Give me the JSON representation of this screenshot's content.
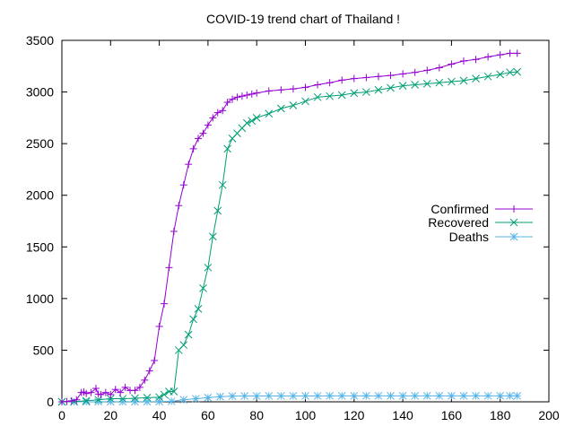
{
  "chart_data": {
    "type": "line",
    "title": "COVID-19 trend chart of Thailand !",
    "xlabel": "",
    "ylabel": "",
    "xlim": [
      0,
      200
    ],
    "ylim": [
      0,
      3500
    ],
    "x_ticks": [
      "0",
      "20",
      "40",
      "60",
      "80",
      "100",
      "120",
      "140",
      "160",
      "180",
      "200"
    ],
    "y_ticks": [
      "0",
      "500",
      "1000",
      "1500",
      "2000",
      "2500",
      "3000",
      "3500"
    ],
    "grid": false,
    "legend_position": "right-middle",
    "series": [
      {
        "name": "Confirmed",
        "color": "#9400d3",
        "marker": "plus",
        "points": [
          [
            0,
            0
          ],
          [
            2,
            3
          ],
          [
            4,
            10
          ],
          [
            6,
            20
          ],
          [
            8,
            90
          ],
          [
            9,
            95
          ],
          [
            10,
            80
          ],
          [
            12,
            90
          ],
          [
            14,
            130
          ],
          [
            15,
            75
          ],
          [
            16,
            70
          ],
          [
            18,
            90
          ],
          [
            20,
            70
          ],
          [
            22,
            120
          ],
          [
            24,
            90
          ],
          [
            26,
            140
          ],
          [
            28,
            110
          ],
          [
            30,
            110
          ],
          [
            32,
            140
          ],
          [
            34,
            210
          ],
          [
            36,
            300
          ],
          [
            38,
            400
          ],
          [
            40,
            730
          ],
          [
            42,
            950
          ],
          [
            44,
            1300
          ],
          [
            46,
            1650
          ],
          [
            48,
            1900
          ],
          [
            50,
            2100
          ],
          [
            52,
            2300
          ],
          [
            54,
            2450
          ],
          [
            56,
            2550
          ],
          [
            58,
            2600
          ],
          [
            60,
            2680
          ],
          [
            62,
            2750
          ],
          [
            64,
            2800
          ],
          [
            66,
            2820
          ],
          [
            68,
            2900
          ],
          [
            70,
            2930
          ],
          [
            72,
            2950
          ],
          [
            74,
            2960
          ],
          [
            76,
            2970
          ],
          [
            78,
            2980
          ],
          [
            80,
            2990
          ],
          [
            85,
            3010
          ],
          [
            90,
            3020
          ],
          [
            95,
            3030
          ],
          [
            100,
            3045
          ],
          [
            105,
            3070
          ],
          [
            110,
            3090
          ],
          [
            115,
            3115
          ],
          [
            120,
            3130
          ],
          [
            125,
            3140
          ],
          [
            130,
            3150
          ],
          [
            135,
            3160
          ],
          [
            140,
            3175
          ],
          [
            145,
            3190
          ],
          [
            150,
            3210
          ],
          [
            155,
            3235
          ],
          [
            160,
            3270
          ],
          [
            165,
            3300
          ],
          [
            170,
            3315
          ],
          [
            175,
            3340
          ],
          [
            180,
            3360
          ],
          [
            184,
            3375
          ],
          [
            187,
            3375
          ]
        ]
      },
      {
        "name": "Recovered",
        "color": "#009e73",
        "marker": "cross",
        "points": [
          [
            0,
            0
          ],
          [
            5,
            2
          ],
          [
            10,
            10
          ],
          [
            15,
            20
          ],
          [
            20,
            30
          ],
          [
            25,
            30
          ],
          [
            30,
            35
          ],
          [
            35,
            40
          ],
          [
            40,
            45
          ],
          [
            42,
            70
          ],
          [
            44,
            100
          ],
          [
            46,
            100
          ],
          [
            48,
            500
          ],
          [
            50,
            550
          ],
          [
            52,
            650
          ],
          [
            54,
            800
          ],
          [
            56,
            900
          ],
          [
            58,
            1100
          ],
          [
            60,
            1300
          ],
          [
            62,
            1600
          ],
          [
            64,
            1850
          ],
          [
            66,
            2100
          ],
          [
            68,
            2450
          ],
          [
            70,
            2550
          ],
          [
            72,
            2600
          ],
          [
            74,
            2650
          ],
          [
            76,
            2700
          ],
          [
            78,
            2720
          ],
          [
            80,
            2750
          ],
          [
            85,
            2790
          ],
          [
            90,
            2840
          ],
          [
            95,
            2870
          ],
          [
            100,
            2910
          ],
          [
            105,
            2950
          ],
          [
            110,
            2960
          ],
          [
            115,
            2970
          ],
          [
            120,
            2990
          ],
          [
            125,
            3000
          ],
          [
            130,
            3020
          ],
          [
            135,
            3040
          ],
          [
            140,
            3060
          ],
          [
            145,
            3070
          ],
          [
            150,
            3080
          ],
          [
            155,
            3090
          ],
          [
            160,
            3100
          ],
          [
            165,
            3110
          ],
          [
            170,
            3130
          ],
          [
            175,
            3150
          ],
          [
            180,
            3170
          ],
          [
            184,
            3190
          ],
          [
            187,
            3195
          ]
        ]
      },
      {
        "name": "Deaths",
        "color": "#56b4e9",
        "marker": "star",
        "points": [
          [
            0,
            0
          ],
          [
            5,
            0
          ],
          [
            10,
            0
          ],
          [
            15,
            1
          ],
          [
            20,
            1
          ],
          [
            25,
            1
          ],
          [
            30,
            1
          ],
          [
            35,
            1
          ],
          [
            40,
            2
          ],
          [
            45,
            5
          ],
          [
            50,
            20
          ],
          [
            55,
            30
          ],
          [
            60,
            40
          ],
          [
            65,
            50
          ],
          [
            70,
            55
          ],
          [
            75,
            56
          ],
          [
            80,
            56
          ],
          [
            85,
            57
          ],
          [
            90,
            57
          ],
          [
            95,
            57
          ],
          [
            100,
            57
          ],
          [
            105,
            57
          ],
          [
            110,
            58
          ],
          [
            115,
            58
          ],
          [
            120,
            58
          ],
          [
            125,
            58
          ],
          [
            130,
            58
          ],
          [
            135,
            58
          ],
          [
            140,
            58
          ],
          [
            145,
            58
          ],
          [
            150,
            58
          ],
          [
            155,
            58
          ],
          [
            160,
            58
          ],
          [
            165,
            58
          ],
          [
            170,
            58
          ],
          [
            175,
            58
          ],
          [
            180,
            58
          ],
          [
            184,
            58
          ],
          [
            187,
            58
          ]
        ]
      }
    ]
  }
}
